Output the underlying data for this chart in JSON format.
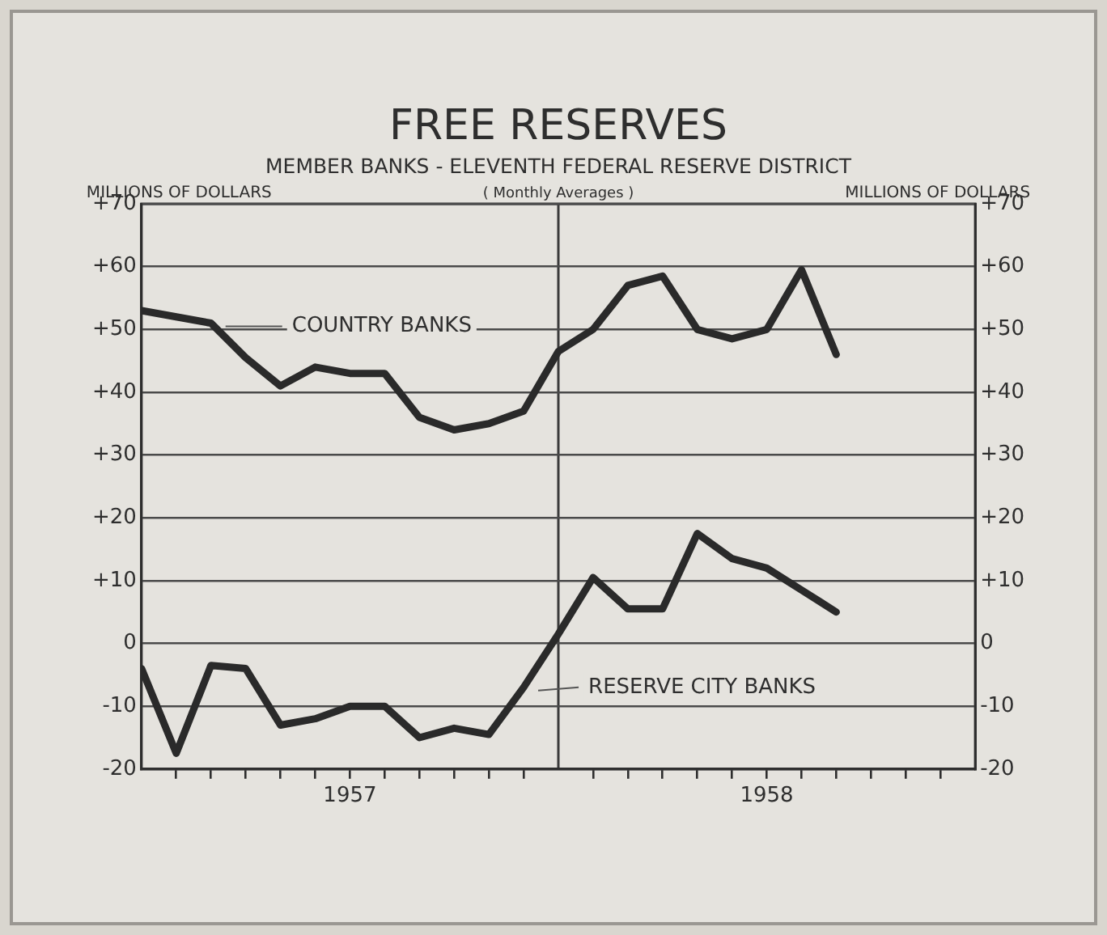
{
  "chart_data": {
    "type": "line",
    "title": "FREE RESERVES",
    "subtitle": "MEMBER BANKS - ELEVENTH FEDERAL RESERVE DISTRICT",
    "annotations": [
      "( Monthly Averages )"
    ],
    "ylabel": "MILLIONS OF DOLLARS",
    "y2label": "MILLIONS OF DOLLARS",
    "x": [
      "1957-01",
      "1957-02",
      "1957-03",
      "1957-04",
      "1957-05",
      "1957-06",
      "1957-07",
      "1957-08",
      "1957-09",
      "1957-10",
      "1957-11",
      "1957-12",
      "1958-01",
      "1958-02",
      "1958-03",
      "1958-04",
      "1958-05",
      "1958-06",
      "1958-07",
      "1958-08",
      "1958-09"
    ],
    "xlim": [
      "1957-01",
      "1959-01"
    ],
    "xticks": [
      {
        "value": "1957-02",
        "label": null
      },
      {
        "value": "1957-03",
        "label": null
      },
      {
        "value": "1957-04",
        "label": null
      },
      {
        "value": "1957-05",
        "label": null
      },
      {
        "value": "1957-06",
        "label": null
      },
      {
        "value": "1957-07",
        "label": "1957"
      },
      {
        "value": "1957-08",
        "label": null
      },
      {
        "value": "1957-09",
        "label": null
      },
      {
        "value": "1957-10",
        "label": null
      },
      {
        "value": "1957-11",
        "label": null
      },
      {
        "value": "1957-12",
        "label": null
      },
      {
        "value": "1958-02",
        "label": null
      },
      {
        "value": "1958-03",
        "label": null
      },
      {
        "value": "1958-04",
        "label": null
      },
      {
        "value": "1958-05",
        "label": null
      },
      {
        "value": "1958-06",
        "label": null
      },
      {
        "value": "1958-07",
        "label": "1958"
      },
      {
        "value": "1958-08",
        "label": null
      },
      {
        "value": "1958-09",
        "label": null
      },
      {
        "value": "1958-10",
        "label": null
      },
      {
        "value": "1958-11",
        "label": null
      },
      {
        "value": "1958-12",
        "label": null
      }
    ],
    "ylim": [
      -20,
      70
    ],
    "yticks": [
      -20,
      -10,
      0,
      {
        "value": 10,
        "label": "+10"
      },
      {
        "value": 20,
        "label": "+20"
      },
      {
        "value": 30,
        "label": "+30"
      },
      {
        "value": 40,
        "label": "+40"
      },
      {
        "value": 50,
        "label": "+50"
      },
      {
        "value": 60,
        "label": "+60"
      },
      {
        "value": 70,
        "label": "+70"
      }
    ],
    "y2lim": [
      -20,
      70
    ],
    "y2ticks": [
      -20,
      -10,
      0,
      {
        "value": 10,
        "label": "+10"
      },
      {
        "value": 20,
        "label": "+20"
      },
      {
        "value": 30,
        "label": "+30"
      },
      {
        "value": 40,
        "label": "+40"
      },
      {
        "value": 50,
        "label": "+50"
      },
      {
        "value": 60,
        "label": "+60"
      },
      {
        "value": 70,
        "label": "+70"
      }
    ],
    "ref_lines": [
      {
        "axis": "x",
        "value": "1958-01",
        "color": "#3a3a3a"
      }
    ],
    "grid": "y",
    "legend": false,
    "marker": "none",
    "line_style": "solid",
    "series": [
      {
        "name": "COUNTRY BANKS",
        "color": "#2a2a2a",
        "values": [
          53,
          52,
          51,
          45.5,
          41,
          44,
          43,
          43,
          36,
          34,
          35,
          37,
          46.5,
          50,
          57,
          58.5,
          50,
          48.5,
          50,
          59.5,
          46
        ]
      },
      {
        "name": "RESERVE CITY BANKS",
        "color": "#2a2a2a",
        "values": [
          -4,
          -17.5,
          -3.5,
          -4,
          -13,
          -12,
          -10,
          -10,
          -15,
          -13.5,
          -14.5,
          -7,
          1.5,
          10.5,
          5.5,
          5.5,
          17.5,
          13.5,
          12,
          8.5,
          5
        ]
      }
    ]
  }
}
